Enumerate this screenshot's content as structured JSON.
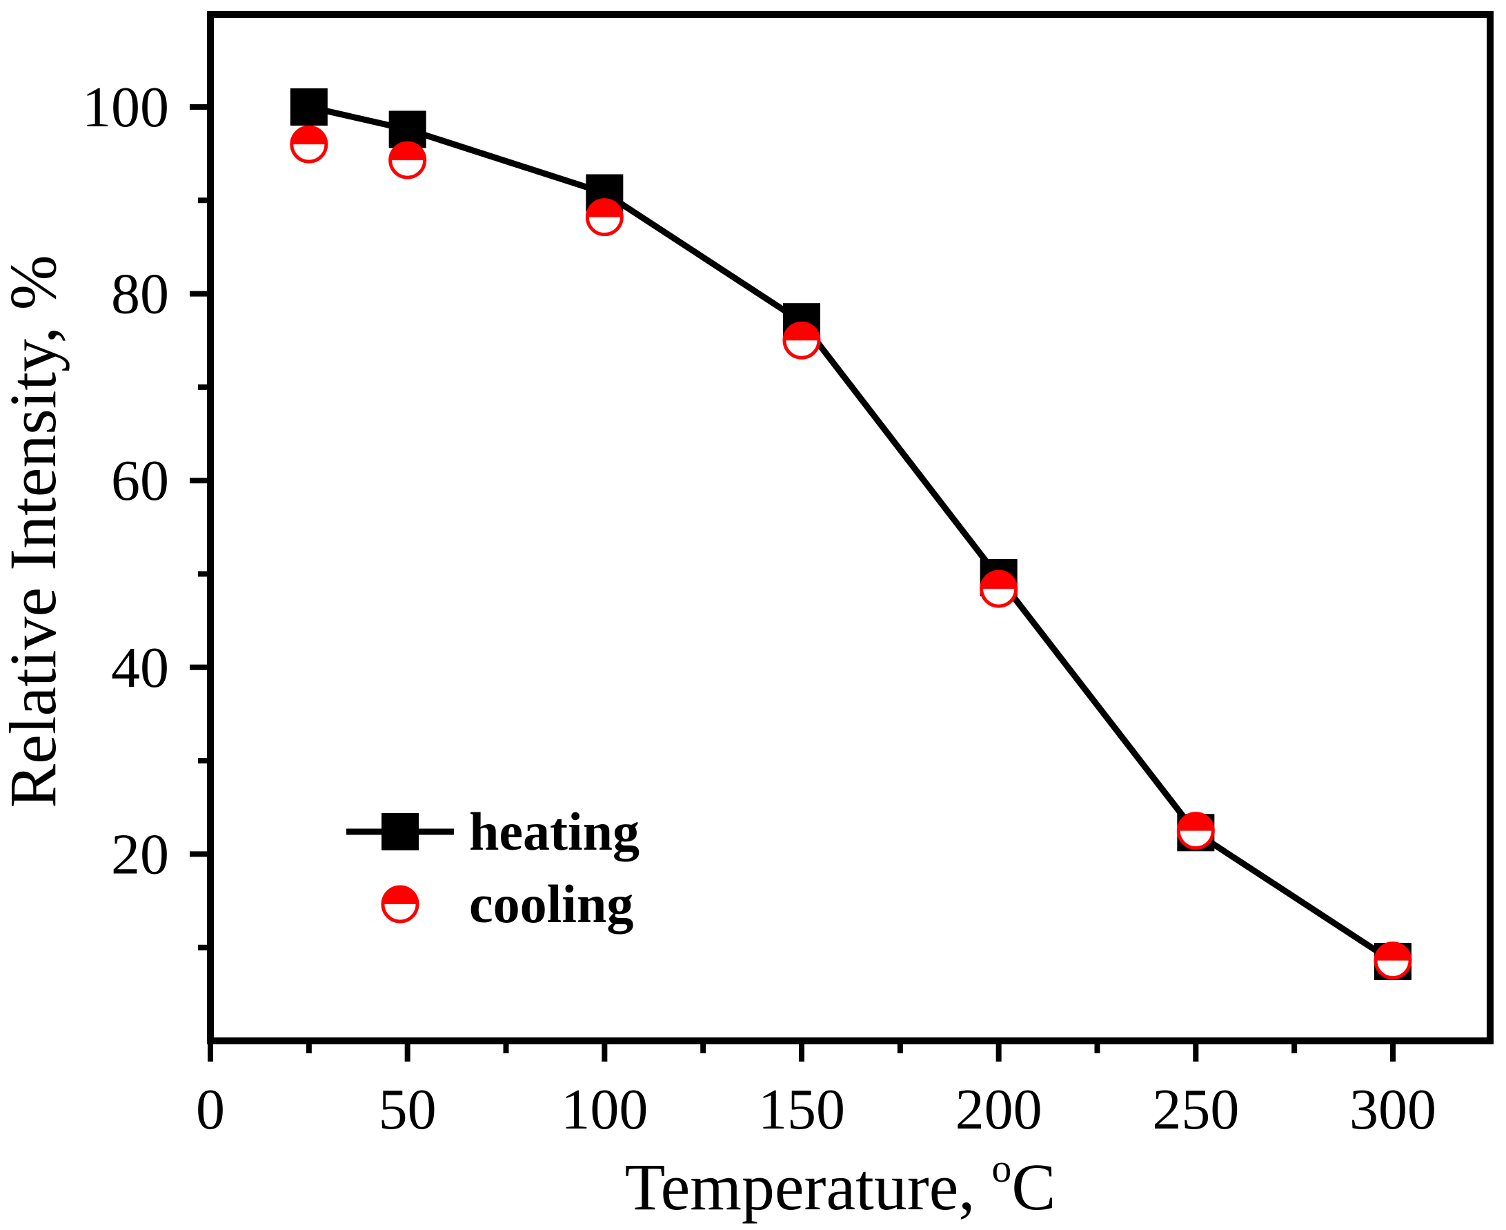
{
  "chart_data": {
    "type": "line",
    "title": "",
    "xlabel": "Temperature, ",
    "xlabel_unit_sup": "o",
    "xlabel_unit": "C",
    "ylabel": "Relative Intensity, %",
    "xlim": [
      0,
      325
    ],
    "ylim": [
      0,
      110
    ],
    "xticks": [
      0,
      50,
      100,
      150,
      200,
      250,
      300
    ],
    "xticks_minor": [
      25,
      75,
      125,
      175,
      225,
      275
    ],
    "yticks": [
      20,
      40,
      60,
      80,
      100
    ],
    "yticks_minor": [
      10,
      30,
      50,
      70,
      90
    ],
    "grid": false,
    "legend_position": "bottom-left",
    "series": [
      {
        "name": "heating",
        "x": [
          25,
          50,
          100,
          150,
          200,
          250,
          300
        ],
        "values": [
          100,
          97.6,
          90.8,
          77,
          49.6,
          22.3,
          8.5
        ],
        "color": "#000000",
        "marker": "square",
        "line": true
      },
      {
        "name": "cooling",
        "x": [
          25,
          50,
          100,
          150,
          200,
          250,
          300
        ],
        "values": [
          96,
          94.3,
          88.2,
          75,
          48.4,
          22.5,
          8.6
        ],
        "color": "#ff0000",
        "marker": "half-filled-circle",
        "line": false
      }
    ]
  }
}
